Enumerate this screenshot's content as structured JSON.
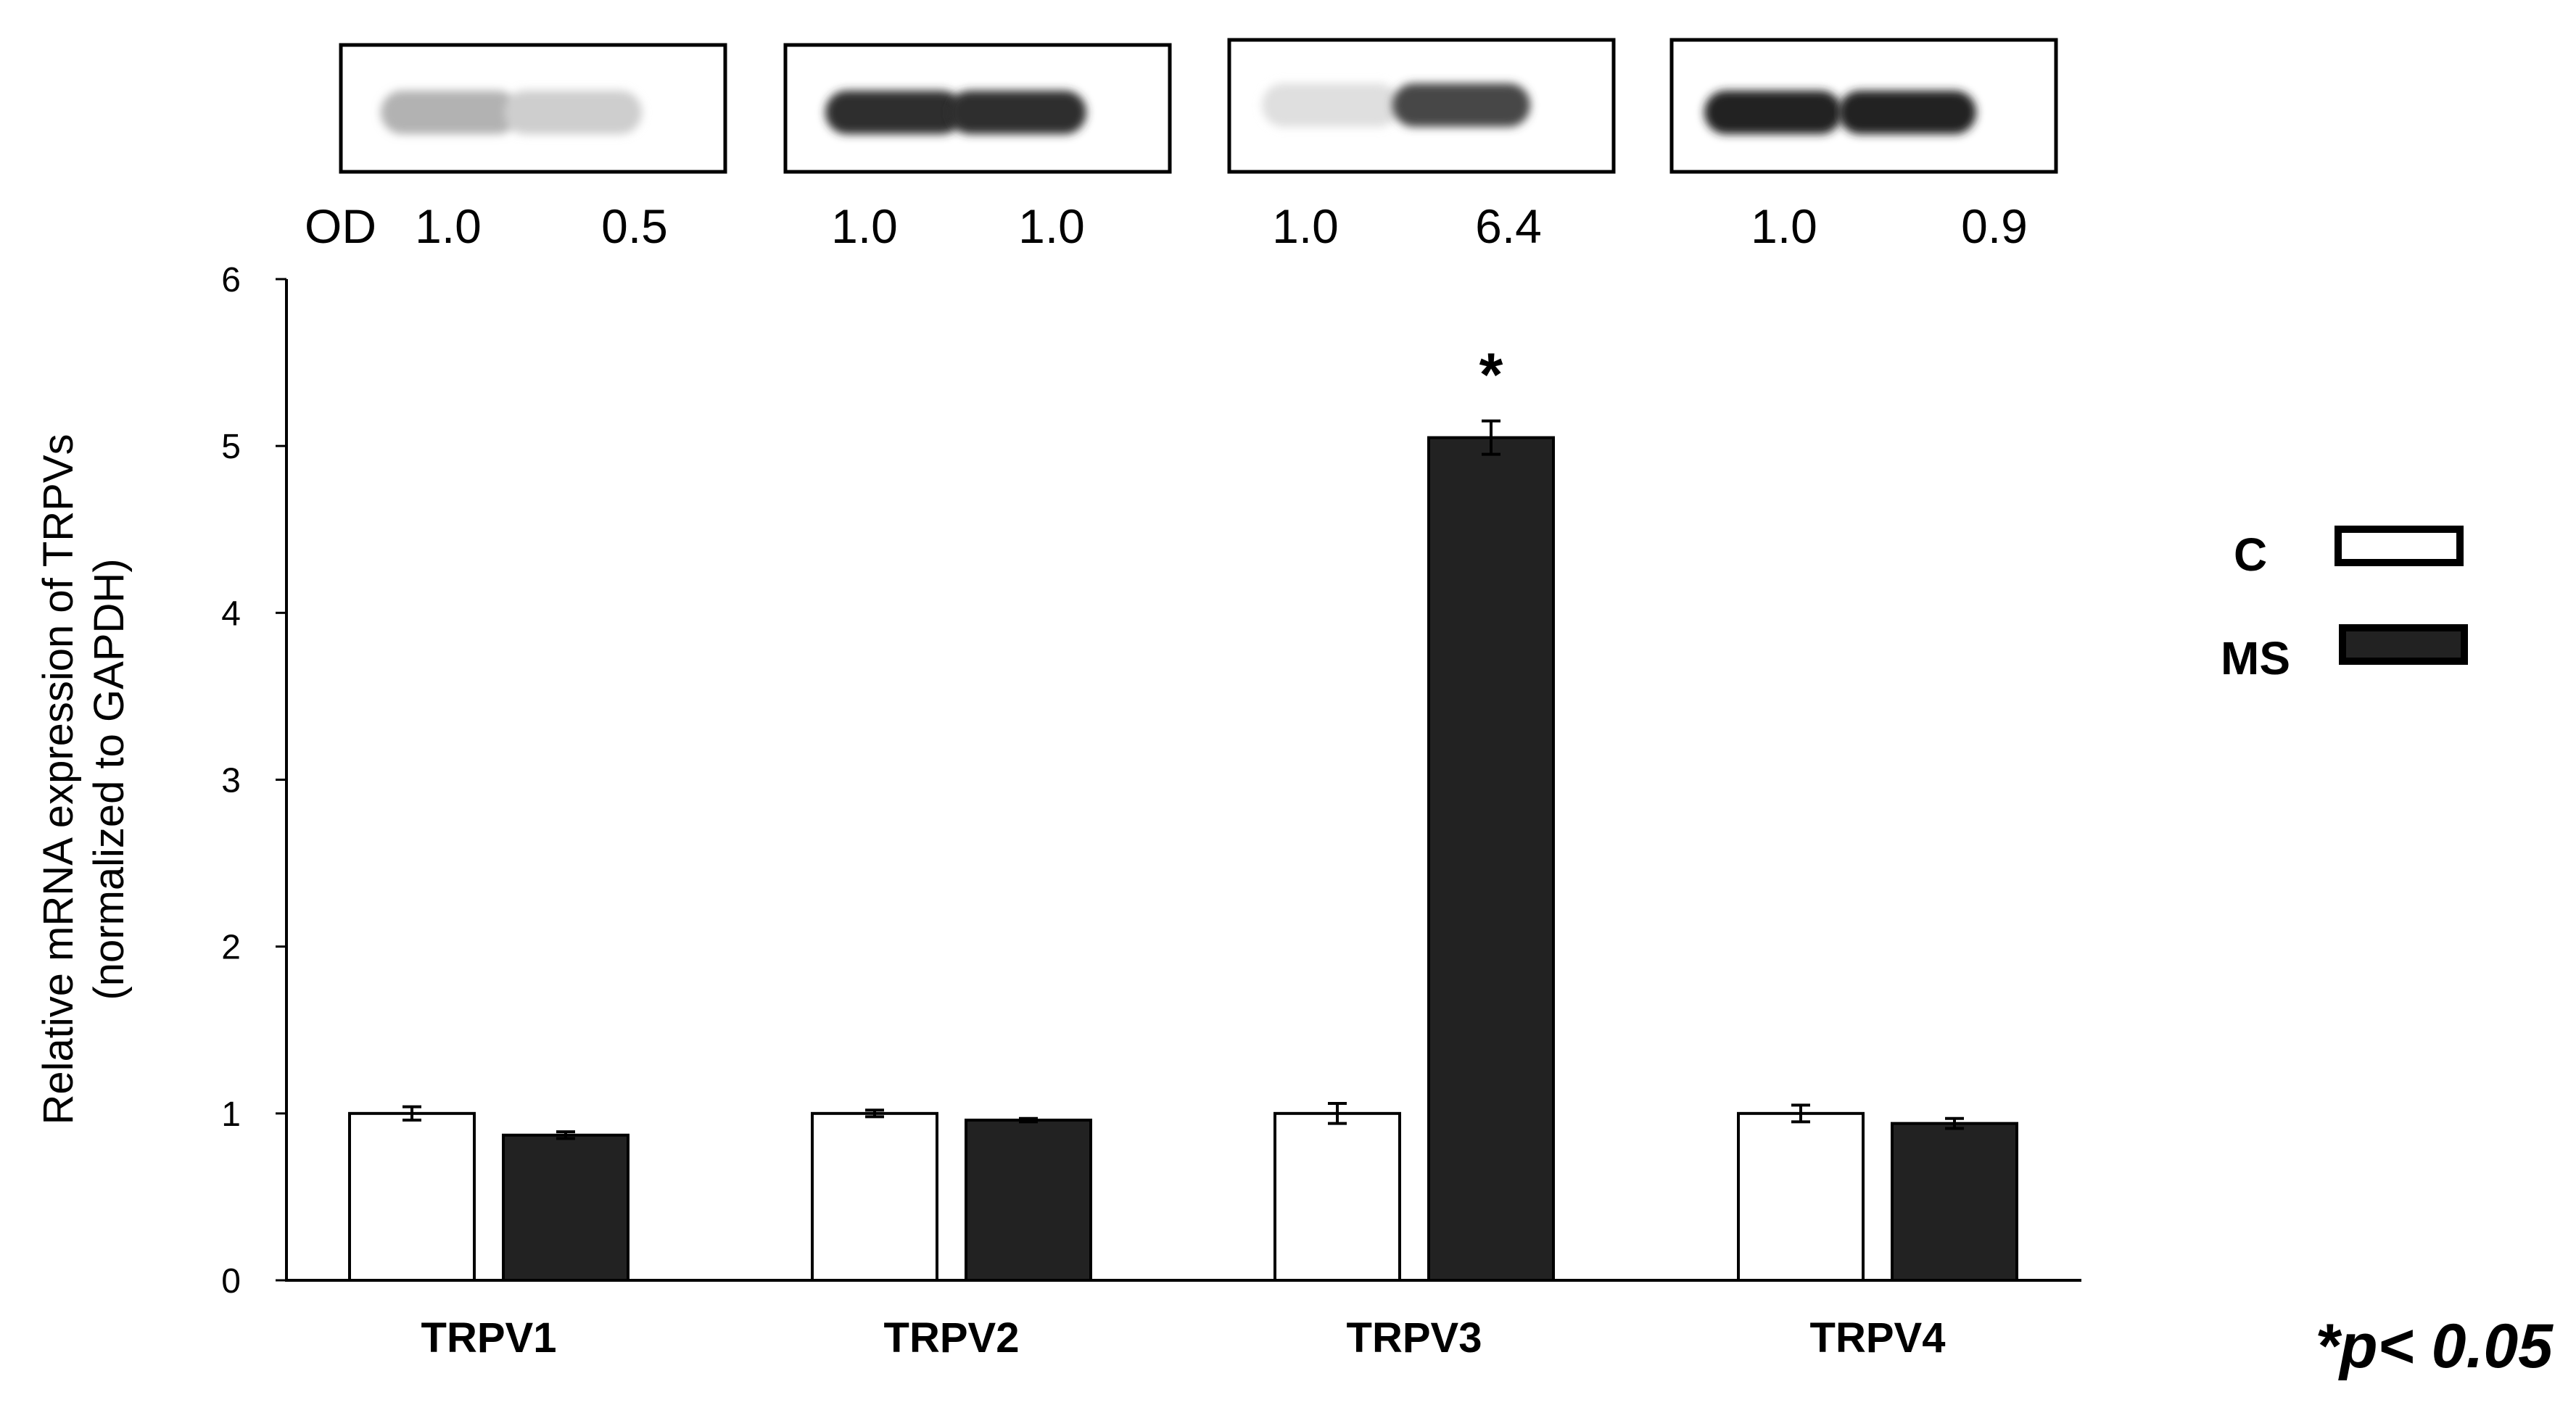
{
  "chart_data": {
    "type": "bar",
    "title": "",
    "xlabel": "",
    "ylabel": "Relative mRNA expression of TRPVs",
    "ylabel_line2": "(normalized to GAPDH)",
    "ylim": [
      0,
      6
    ],
    "yticks": [
      "0",
      "1",
      "2",
      "3",
      "4",
      "5",
      "6"
    ],
    "categories": [
      "TRPV1",
      "TRPV2",
      "TRPV3",
      "TRPV4"
    ],
    "series": [
      {
        "name": "C",
        "color": "#ffffff",
        "values": [
          1.0,
          1.0,
          1.0,
          1.0
        ],
        "errors": [
          0.04,
          0.02,
          0.06,
          0.05
        ]
      },
      {
        "name": "MS",
        "color": "#222222",
        "values": [
          0.87,
          0.96,
          5.05,
          0.94
        ],
        "errors": [
          0.02,
          0.01,
          0.1,
          0.03
        ]
      }
    ],
    "significance": [
      {
        "category": "TRPV3",
        "series": "MS",
        "label": "*"
      }
    ],
    "legend_position": "right",
    "grid": false
  },
  "blot": {
    "od_prefix": "OD",
    "od_values": [
      [
        "1.0",
        "0.5"
      ],
      [
        "1.0",
        "1.0"
      ],
      [
        "1.0",
        "6.4"
      ],
      [
        "1.0",
        "0.9"
      ]
    ],
    "band_intensity": [
      [
        0.28,
        0.14
      ],
      [
        0.92,
        0.92
      ],
      [
        0.06,
        0.8
      ],
      [
        0.97,
        0.97
      ]
    ]
  },
  "note": "*p< 0.05"
}
